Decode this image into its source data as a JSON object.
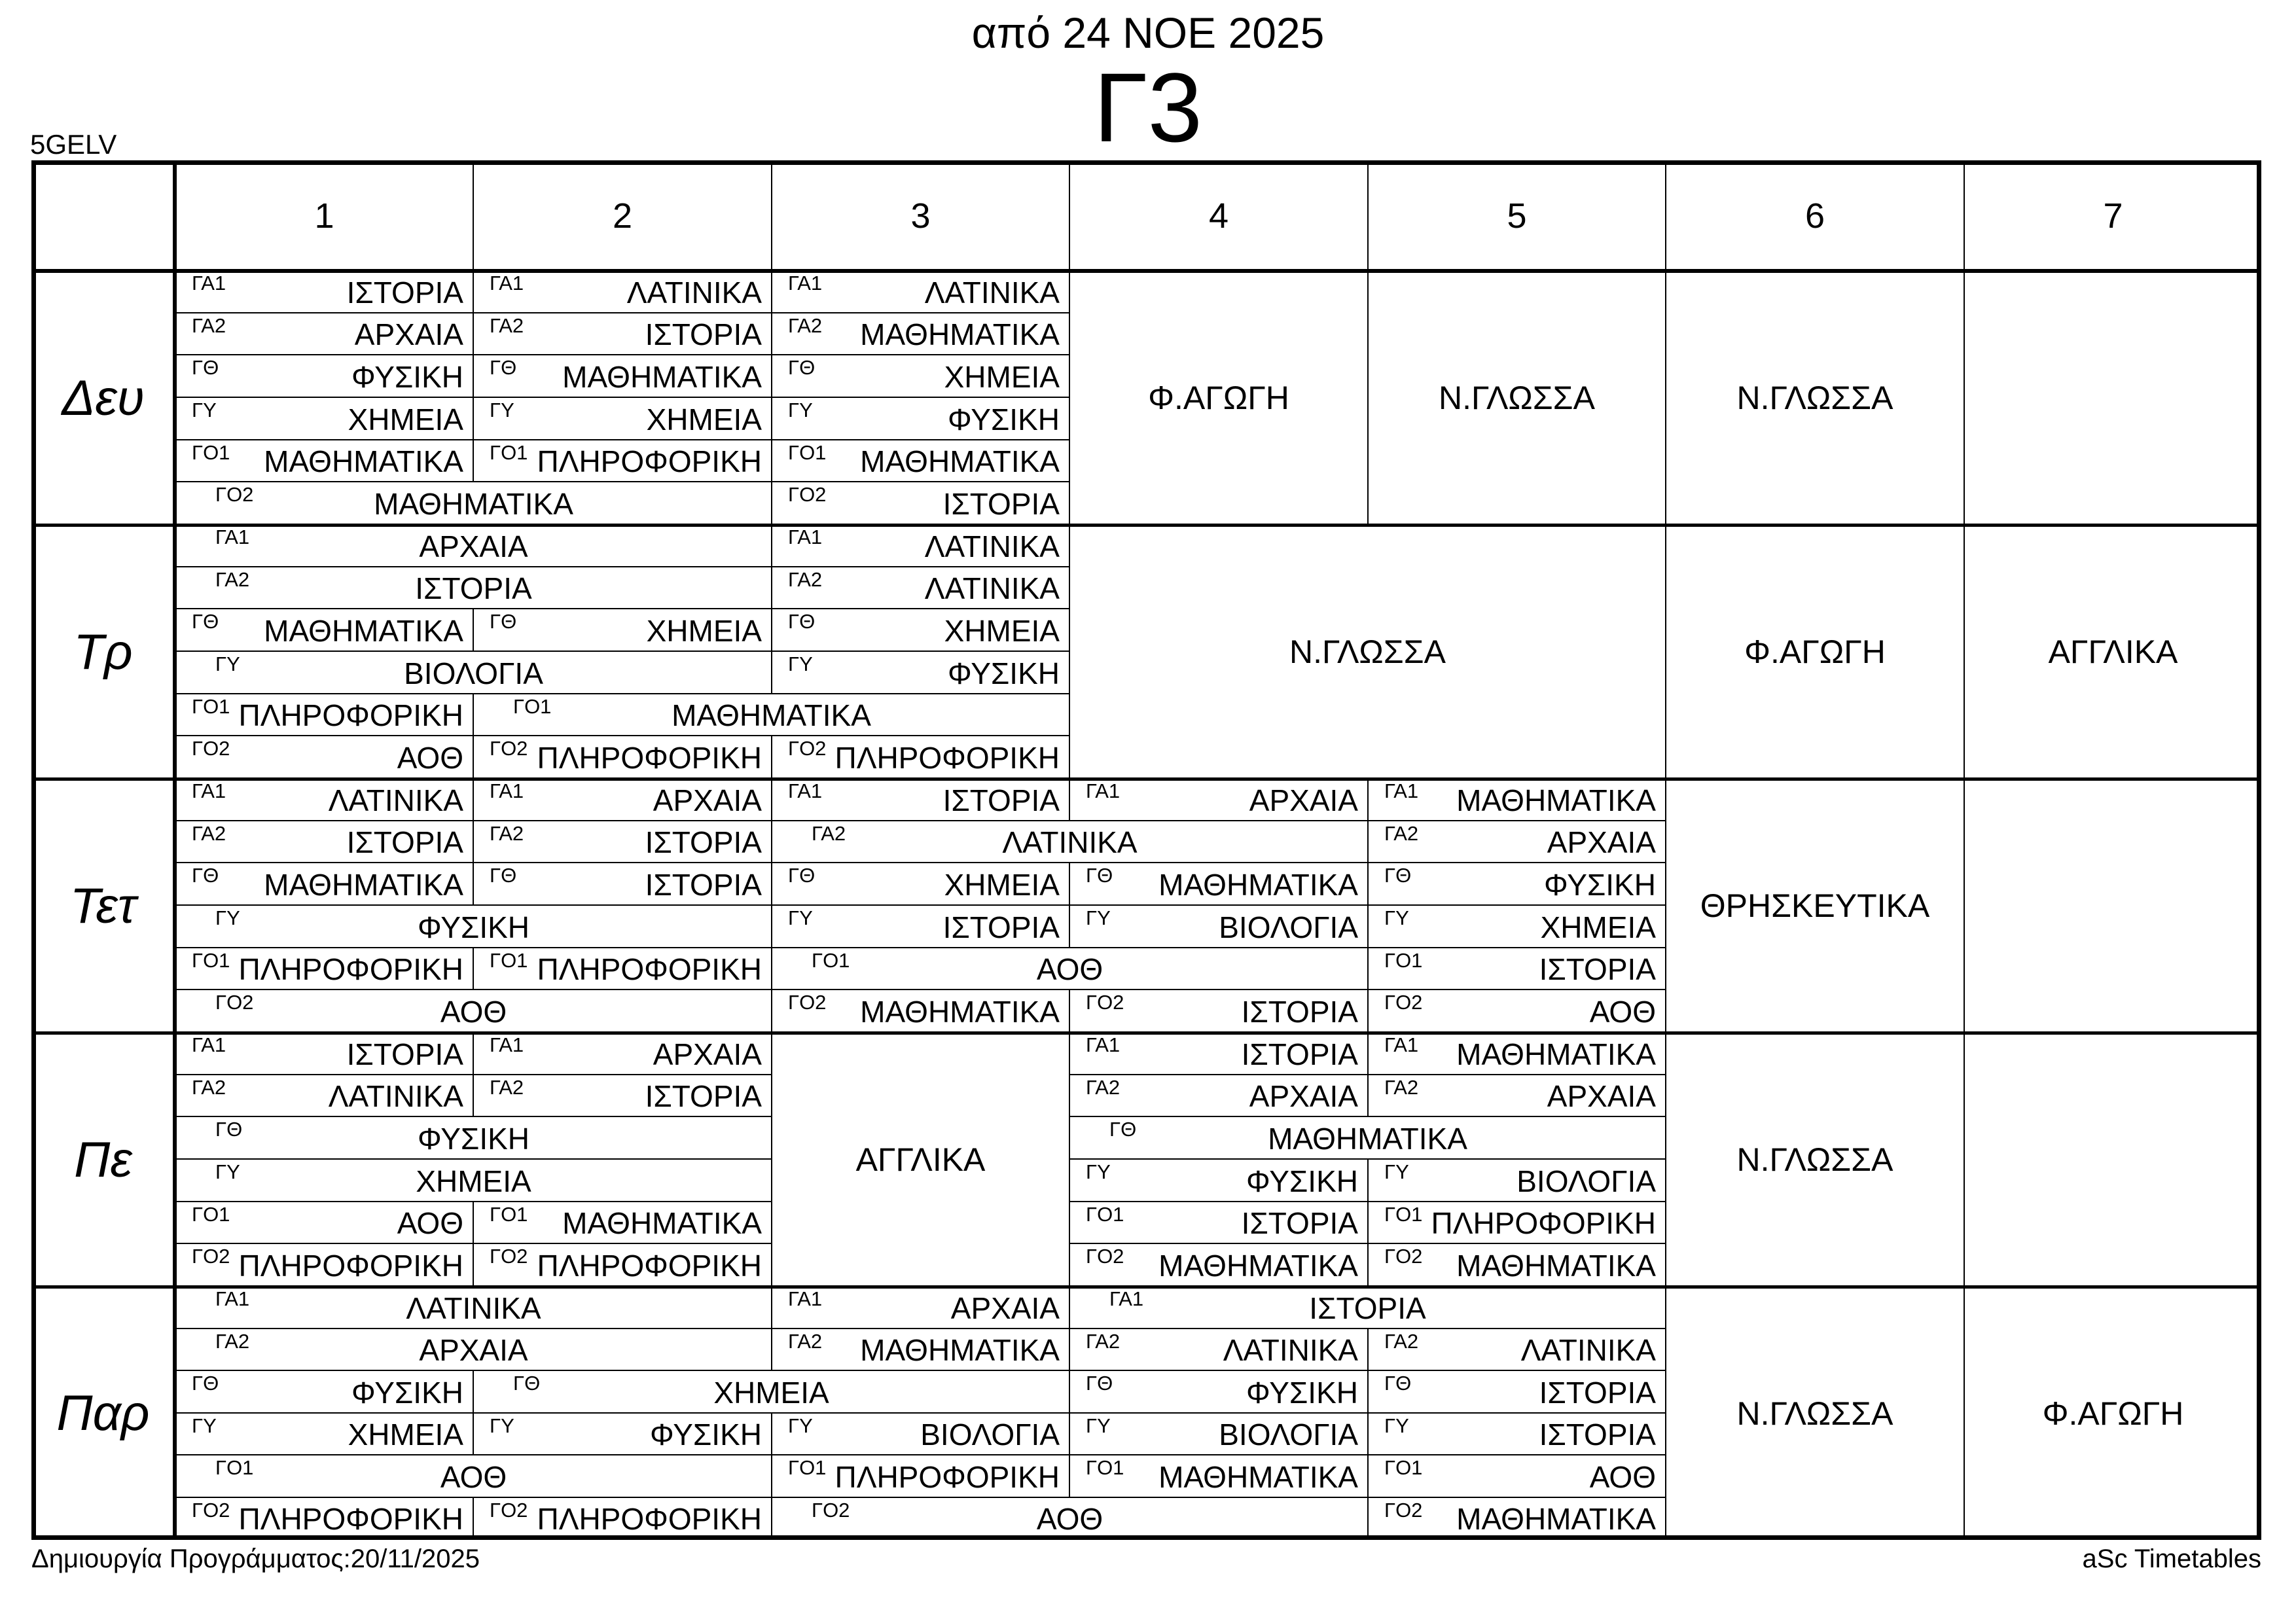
{
  "header": {
    "title": "από 24 ΝΟΕ 2025",
    "class_name": "Γ3",
    "school_code": "5GELV"
  },
  "footer": {
    "left": "Δημιουργία Προγράμματος:20/11/2025",
    "right": "aSc Timetables"
  },
  "periods": [
    "1",
    "2",
    "3",
    "4",
    "5",
    "6",
    "7"
  ],
  "days": [
    {
      "name": "Δευ",
      "subcells": [
        {
          "r": 0,
          "c": 1,
          "sp": 1,
          "g": "ΓΑ1",
          "s": "ΙΣΤΟΡΙΑ"
        },
        {
          "r": 0,
          "c": 2,
          "sp": 1,
          "g": "ΓΑ1",
          "s": "ΛΑΤΙΝΙΚΑ"
        },
        {
          "r": 0,
          "c": 3,
          "sp": 1,
          "g": "ΓΑ1",
          "s": "ΛΑΤΙΝΙΚΑ"
        },
        {
          "r": 1,
          "c": 1,
          "sp": 1,
          "g": "ΓΑ2",
          "s": "ΑΡΧΑΙΑ"
        },
        {
          "r": 1,
          "c": 2,
          "sp": 1,
          "g": "ΓΑ2",
          "s": "ΙΣΤΟΡΙΑ"
        },
        {
          "r": 1,
          "c": 3,
          "sp": 1,
          "g": "ΓΑ2",
          "s": "ΜΑΘΗΜΑΤΙΚΑ"
        },
        {
          "r": 2,
          "c": 1,
          "sp": 1,
          "g": "ΓΘ",
          "s": "ΦΥΣΙΚΗ"
        },
        {
          "r": 2,
          "c": 2,
          "sp": 1,
          "g": "ΓΘ",
          "s": "ΜΑΘΗΜΑΤΙΚΑ"
        },
        {
          "r": 2,
          "c": 3,
          "sp": 1,
          "g": "ΓΘ",
          "s": "ΧΗΜΕΙΑ"
        },
        {
          "r": 3,
          "c": 1,
          "sp": 1,
          "g": "ΓΥ",
          "s": "ΧΗΜΕΙΑ"
        },
        {
          "r": 3,
          "c": 2,
          "sp": 1,
          "g": "ΓΥ",
          "s": "ΧΗΜΕΙΑ"
        },
        {
          "r": 3,
          "c": 3,
          "sp": 1,
          "g": "ΓΥ",
          "s": "ΦΥΣΙΚΗ"
        },
        {
          "r": 4,
          "c": 1,
          "sp": 1,
          "g": "ΓΟ1",
          "s": "ΜΑΘΗΜΑΤΙΚΑ"
        },
        {
          "r": 4,
          "c": 2,
          "sp": 1,
          "g": "ΓΟ1",
          "s": "ΠΛΗΡΟΦΟΡΙΚΗ"
        },
        {
          "r": 4,
          "c": 3,
          "sp": 1,
          "g": "ΓΟ1",
          "s": "ΜΑΘΗΜΑΤΙΚΑ"
        },
        {
          "r": 5,
          "c": 1,
          "sp": 2,
          "g": "ΓΟ2",
          "s": "ΜΑΘΗΜΑΤΙΚΑ"
        },
        {
          "r": 5,
          "c": 3,
          "sp": 1,
          "g": "ΓΟ2",
          "s": "ΙΣΤΟΡΙΑ"
        }
      ],
      "fullcells": [
        {
          "c": 4,
          "sp": 1,
          "s": "Φ.ΑΓΩΓΗ"
        },
        {
          "c": 5,
          "sp": 1,
          "s": "Ν.ΓΛΩΣΣΑ"
        },
        {
          "c": 6,
          "sp": 1,
          "s": "Ν.ΓΛΩΣΣΑ"
        }
      ],
      "empty_cols": [
        7
      ]
    },
    {
      "name": "Τρ",
      "subcells": [
        {
          "r": 0,
          "c": 1,
          "sp": 2,
          "g": "ΓΑ1",
          "s": "ΑΡΧΑΙΑ"
        },
        {
          "r": 0,
          "c": 3,
          "sp": 1,
          "g": "ΓΑ1",
          "s": "ΛΑΤΙΝΙΚΑ"
        },
        {
          "r": 1,
          "c": 1,
          "sp": 2,
          "g": "ΓΑ2",
          "s": "ΙΣΤΟΡΙΑ"
        },
        {
          "r": 1,
          "c": 3,
          "sp": 1,
          "g": "ΓΑ2",
          "s": "ΛΑΤΙΝΙΚΑ"
        },
        {
          "r": 2,
          "c": 1,
          "sp": 1,
          "g": "ΓΘ",
          "s": "ΜΑΘΗΜΑΤΙΚΑ"
        },
        {
          "r": 2,
          "c": 2,
          "sp": 1,
          "g": "ΓΘ",
          "s": "ΧΗΜΕΙΑ"
        },
        {
          "r": 2,
          "c": 3,
          "sp": 1,
          "g": "ΓΘ",
          "s": "ΧΗΜΕΙΑ"
        },
        {
          "r": 3,
          "c": 1,
          "sp": 2,
          "g": "ΓΥ",
          "s": "ΒΙΟΛΟΓΙΑ"
        },
        {
          "r": 3,
          "c": 3,
          "sp": 1,
          "g": "ΓΥ",
          "s": "ΦΥΣΙΚΗ"
        },
        {
          "r": 4,
          "c": 1,
          "sp": 1,
          "g": "ΓΟ1",
          "s": "ΠΛΗΡΟΦΟΡΙΚΗ"
        },
        {
          "r": 4,
          "c": 2,
          "sp": 2,
          "g": "ΓΟ1",
          "s": "ΜΑΘΗΜΑΤΙΚΑ"
        },
        {
          "r": 5,
          "c": 1,
          "sp": 1,
          "g": "ΓΟ2",
          "s": "ΑΟΘ"
        },
        {
          "r": 5,
          "c": 2,
          "sp": 1,
          "g": "ΓΟ2",
          "s": "ΠΛΗΡΟΦΟΡΙΚΗ"
        },
        {
          "r": 5,
          "c": 3,
          "sp": 1,
          "g": "ΓΟ2",
          "s": "ΠΛΗΡΟΦΟΡΙΚΗ"
        }
      ],
      "fullcells": [
        {
          "c": 4,
          "sp": 2,
          "s": "Ν.ΓΛΩΣΣΑ"
        },
        {
          "c": 6,
          "sp": 1,
          "s": "Φ.ΑΓΩΓΗ"
        },
        {
          "c": 7,
          "sp": 1,
          "s": "ΑΓΓΛΙΚΑ"
        }
      ],
      "empty_cols": []
    },
    {
      "name": "Τετ",
      "subcells": [
        {
          "r": 0,
          "c": 1,
          "sp": 1,
          "g": "ΓΑ1",
          "s": "ΛΑΤΙΝΙΚΑ"
        },
        {
          "r": 0,
          "c": 2,
          "sp": 1,
          "g": "ΓΑ1",
          "s": "ΑΡΧΑΙΑ"
        },
        {
          "r": 0,
          "c": 3,
          "sp": 1,
          "g": "ΓΑ1",
          "s": "ΙΣΤΟΡΙΑ"
        },
        {
          "r": 0,
          "c": 4,
          "sp": 1,
          "g": "ΓΑ1",
          "s": "ΑΡΧΑΙΑ"
        },
        {
          "r": 0,
          "c": 5,
          "sp": 1,
          "g": "ΓΑ1",
          "s": "ΜΑΘΗΜΑΤΙΚΑ"
        },
        {
          "r": 1,
          "c": 1,
          "sp": 1,
          "g": "ΓΑ2",
          "s": "ΙΣΤΟΡΙΑ"
        },
        {
          "r": 1,
          "c": 2,
          "sp": 1,
          "g": "ΓΑ2",
          "s": "ΙΣΤΟΡΙΑ"
        },
        {
          "r": 1,
          "c": 3,
          "sp": 2,
          "g": "ΓΑ2",
          "s": "ΛΑΤΙΝΙΚΑ"
        },
        {
          "r": 1,
          "c": 5,
          "sp": 1,
          "g": "ΓΑ2",
          "s": "ΑΡΧΑΙΑ"
        },
        {
          "r": 2,
          "c": 1,
          "sp": 1,
          "g": "ΓΘ",
          "s": "ΜΑΘΗΜΑΤΙΚΑ"
        },
        {
          "r": 2,
          "c": 2,
          "sp": 1,
          "g": "ΓΘ",
          "s": "ΙΣΤΟΡΙΑ"
        },
        {
          "r": 2,
          "c": 3,
          "sp": 1,
          "g": "ΓΘ",
          "s": "ΧΗΜΕΙΑ"
        },
        {
          "r": 2,
          "c": 4,
          "sp": 1,
          "g": "ΓΘ",
          "s": "ΜΑΘΗΜΑΤΙΚΑ"
        },
        {
          "r": 2,
          "c": 5,
          "sp": 1,
          "g": "ΓΘ",
          "s": "ΦΥΣΙΚΗ"
        },
        {
          "r": 3,
          "c": 1,
          "sp": 2,
          "g": "ΓΥ",
          "s": "ΦΥΣΙΚΗ"
        },
        {
          "r": 3,
          "c": 3,
          "sp": 1,
          "g": "ΓΥ",
          "s": "ΙΣΤΟΡΙΑ"
        },
        {
          "r": 3,
          "c": 4,
          "sp": 1,
          "g": "ΓΥ",
          "s": "ΒΙΟΛΟΓΙΑ"
        },
        {
          "r": 3,
          "c": 5,
          "sp": 1,
          "g": "ΓΥ",
          "s": "ΧΗΜΕΙΑ"
        },
        {
          "r": 4,
          "c": 1,
          "sp": 1,
          "g": "ΓΟ1",
          "s": "ΠΛΗΡΟΦΟΡΙΚΗ"
        },
        {
          "r": 4,
          "c": 2,
          "sp": 1,
          "g": "ΓΟ1",
          "s": "ΠΛΗΡΟΦΟΡΙΚΗ"
        },
        {
          "r": 4,
          "c": 3,
          "sp": 2,
          "g": "ΓΟ1",
          "s": "ΑΟΘ"
        },
        {
          "r": 4,
          "c": 5,
          "sp": 1,
          "g": "ΓΟ1",
          "s": "ΙΣΤΟΡΙΑ"
        },
        {
          "r": 5,
          "c": 1,
          "sp": 2,
          "g": "ΓΟ2",
          "s": "ΑΟΘ"
        },
        {
          "r": 5,
          "c": 3,
          "sp": 1,
          "g": "ΓΟ2",
          "s": "ΜΑΘΗΜΑΤΙΚΑ"
        },
        {
          "r": 5,
          "c": 4,
          "sp": 1,
          "g": "ΓΟ2",
          "s": "ΙΣΤΟΡΙΑ"
        },
        {
          "r": 5,
          "c": 5,
          "sp": 1,
          "g": "ΓΟ2",
          "s": "ΑΟΘ"
        }
      ],
      "fullcells": [
        {
          "c": 6,
          "sp": 1,
          "s": "ΘΡΗΣΚΕΥΤΙΚΑ"
        }
      ],
      "empty_cols": [
        7
      ]
    },
    {
      "name": "Πε",
      "subcells": [
        {
          "r": 0,
          "c": 1,
          "sp": 1,
          "g": "ΓΑ1",
          "s": "ΙΣΤΟΡΙΑ"
        },
        {
          "r": 0,
          "c": 2,
          "sp": 1,
          "g": "ΓΑ1",
          "s": "ΑΡΧΑΙΑ"
        },
        {
          "r": 0,
          "c": 4,
          "sp": 1,
          "g": "ΓΑ1",
          "s": "ΙΣΤΟΡΙΑ"
        },
        {
          "r": 0,
          "c": 5,
          "sp": 1,
          "g": "ΓΑ1",
          "s": "ΜΑΘΗΜΑΤΙΚΑ"
        },
        {
          "r": 1,
          "c": 1,
          "sp": 1,
          "g": "ΓΑ2",
          "s": "ΛΑΤΙΝΙΚΑ"
        },
        {
          "r": 1,
          "c": 2,
          "sp": 1,
          "g": "ΓΑ2",
          "s": "ΙΣΤΟΡΙΑ"
        },
        {
          "r": 1,
          "c": 4,
          "sp": 1,
          "g": "ΓΑ2",
          "s": "ΑΡΧΑΙΑ"
        },
        {
          "r": 1,
          "c": 5,
          "sp": 1,
          "g": "ΓΑ2",
          "s": "ΑΡΧΑΙΑ"
        },
        {
          "r": 2,
          "c": 1,
          "sp": 2,
          "g": "ΓΘ",
          "s": "ΦΥΣΙΚΗ"
        },
        {
          "r": 2,
          "c": 4,
          "sp": 2,
          "g": "ΓΘ",
          "s": "ΜΑΘΗΜΑΤΙΚΑ"
        },
        {
          "r": 3,
          "c": 1,
          "sp": 2,
          "g": "ΓΥ",
          "s": "ΧΗΜΕΙΑ"
        },
        {
          "r": 3,
          "c": 4,
          "sp": 1,
          "g": "ΓΥ",
          "s": "ΦΥΣΙΚΗ"
        },
        {
          "r": 3,
          "c": 5,
          "sp": 1,
          "g": "ΓΥ",
          "s": "ΒΙΟΛΟΓΙΑ"
        },
        {
          "r": 4,
          "c": 1,
          "sp": 1,
          "g": "ΓΟ1",
          "s": "ΑΟΘ"
        },
        {
          "r": 4,
          "c": 2,
          "sp": 1,
          "g": "ΓΟ1",
          "s": "ΜΑΘΗΜΑΤΙΚΑ"
        },
        {
          "r": 4,
          "c": 4,
          "sp": 1,
          "g": "ΓΟ1",
          "s": "ΙΣΤΟΡΙΑ"
        },
        {
          "r": 4,
          "c": 5,
          "sp": 1,
          "g": "ΓΟ1",
          "s": "ΠΛΗΡΟΦΟΡΙΚΗ"
        },
        {
          "r": 5,
          "c": 1,
          "sp": 1,
          "g": "ΓΟ2",
          "s": "ΠΛΗΡΟΦΟΡΙΚΗ"
        },
        {
          "r": 5,
          "c": 2,
          "sp": 1,
          "g": "ΓΟ2",
          "s": "ΠΛΗΡΟΦΟΡΙΚΗ"
        },
        {
          "r": 5,
          "c": 4,
          "sp": 1,
          "g": "ΓΟ2",
          "s": "ΜΑΘΗΜΑΤΙΚΑ"
        },
        {
          "r": 5,
          "c": 5,
          "sp": 1,
          "g": "ΓΟ2",
          "s": "ΜΑΘΗΜΑΤΙΚΑ"
        }
      ],
      "fullcells": [
        {
          "c": 3,
          "sp": 1,
          "s": "ΑΓΓΛΙΚΑ"
        },
        {
          "c": 6,
          "sp": 1,
          "s": "Ν.ΓΛΩΣΣΑ"
        }
      ],
      "empty_cols": [
        7
      ]
    },
    {
      "name": "Παρ",
      "subcells": [
        {
          "r": 0,
          "c": 1,
          "sp": 2,
          "g": "ΓΑ1",
          "s": "ΛΑΤΙΝΙΚΑ"
        },
        {
          "r": 0,
          "c": 3,
          "sp": 1,
          "g": "ΓΑ1",
          "s": "ΑΡΧΑΙΑ"
        },
        {
          "r": 0,
          "c": 4,
          "sp": 2,
          "g": "ΓΑ1",
          "s": "ΙΣΤΟΡΙΑ"
        },
        {
          "r": 1,
          "c": 1,
          "sp": 2,
          "g": "ΓΑ2",
          "s": "ΑΡΧΑΙΑ"
        },
        {
          "r": 1,
          "c": 3,
          "sp": 1,
          "g": "ΓΑ2",
          "s": "ΜΑΘΗΜΑΤΙΚΑ"
        },
        {
          "r": 1,
          "c": 4,
          "sp": 1,
          "g": "ΓΑ2",
          "s": "ΛΑΤΙΝΙΚΑ"
        },
        {
          "r": 1,
          "c": 5,
          "sp": 1,
          "g": "ΓΑ2",
          "s": "ΛΑΤΙΝΙΚΑ"
        },
        {
          "r": 2,
          "c": 1,
          "sp": 1,
          "g": "ΓΘ",
          "s": "ΦΥΣΙΚΗ"
        },
        {
          "r": 2,
          "c": 2,
          "sp": 2,
          "g": "ΓΘ",
          "s": "ΧΗΜΕΙΑ"
        },
        {
          "r": 2,
          "c": 4,
          "sp": 1,
          "g": "ΓΘ",
          "s": "ΦΥΣΙΚΗ"
        },
        {
          "r": 2,
          "c": 5,
          "sp": 1,
          "g": "ΓΘ",
          "s": "ΙΣΤΟΡΙΑ"
        },
        {
          "r": 3,
          "c": 1,
          "sp": 1,
          "g": "ΓΥ",
          "s": "ΧΗΜΕΙΑ"
        },
        {
          "r": 3,
          "c": 2,
          "sp": 1,
          "g": "ΓΥ",
          "s": "ΦΥΣΙΚΗ"
        },
        {
          "r": 3,
          "c": 3,
          "sp": 1,
          "g": "ΓΥ",
          "s": "ΒΙΟΛΟΓΙΑ"
        },
        {
          "r": 3,
          "c": 4,
          "sp": 1,
          "g": "ΓΥ",
          "s": "ΒΙΟΛΟΓΙΑ"
        },
        {
          "r": 3,
          "c": 5,
          "sp": 1,
          "g": "ΓΥ",
          "s": "ΙΣΤΟΡΙΑ"
        },
        {
          "r": 4,
          "c": 1,
          "sp": 2,
          "g": "ΓΟ1",
          "s": "ΑΟΘ"
        },
        {
          "r": 4,
          "c": 3,
          "sp": 1,
          "g": "ΓΟ1",
          "s": "ΠΛΗΡΟΦΟΡΙΚΗ"
        },
        {
          "r": 4,
          "c": 4,
          "sp": 1,
          "g": "ΓΟ1",
          "s": "ΜΑΘΗΜΑΤΙΚΑ"
        },
        {
          "r": 4,
          "c": 5,
          "sp": 1,
          "g": "ΓΟ1",
          "s": "ΑΟΘ"
        },
        {
          "r": 5,
          "c": 1,
          "sp": 1,
          "g": "ΓΟ2",
          "s": "ΠΛΗΡΟΦΟΡΙΚΗ"
        },
        {
          "r": 5,
          "c": 2,
          "sp": 1,
          "g": "ΓΟ2",
          "s": "ΠΛΗΡΟΦΟΡΙΚΗ"
        },
        {
          "r": 5,
          "c": 3,
          "sp": 2,
          "g": "ΓΟ2",
          "s": "ΑΟΘ"
        },
        {
          "r": 5,
          "c": 5,
          "sp": 1,
          "g": "ΓΟ2",
          "s": "ΜΑΘΗΜΑΤΙΚΑ"
        }
      ],
      "fullcells": [
        {
          "c": 6,
          "sp": 1,
          "s": "Ν.ΓΛΩΣΣΑ"
        },
        {
          "c": 7,
          "sp": 1,
          "s": "Φ.ΑΓΩΓΗ"
        }
      ],
      "empty_cols": []
    }
  ]
}
